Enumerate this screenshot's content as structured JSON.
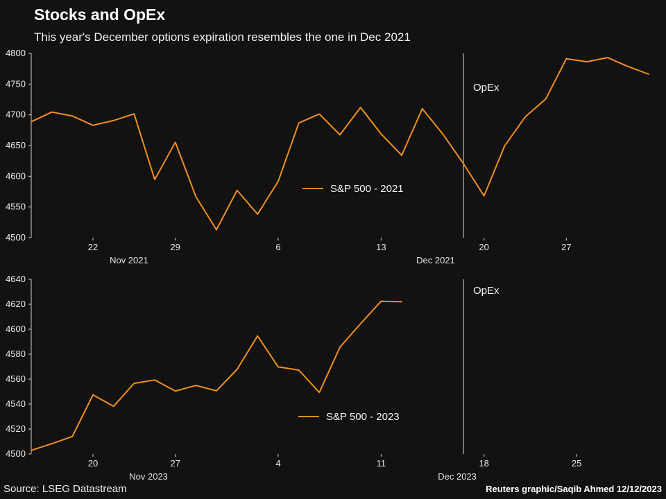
{
  "header": {
    "title": "Stocks and OpEx",
    "subtitle": "This year's December options expiration resembles the one in Dec 2021"
  },
  "footer": {
    "source": "Source: LSEG Datastream",
    "credit": "Reuters graphic/Saqib Ahmed 12/12/2023"
  },
  "colors": {
    "background": "#121212",
    "line": "#f2901e",
    "axis": "#cfcfcf",
    "opex_line": "#dedede",
    "text": "#f2f2f2"
  },
  "chart_data": [
    {
      "type": "line",
      "title": "S&P 500 - 2021",
      "legend_label": "S&P 500 - 2021",
      "x_unit": "consecutive trading days, Nov 17 2021 - Dec 31 2021",
      "x_domain": [
        0,
        30
      ],
      "ylim": [
        4500,
        4800
      ],
      "yticks": [
        4500,
        4550,
        4600,
        4650,
        4700,
        4750,
        4800
      ],
      "xticks": [
        {
          "label": "22",
          "i": 3
        },
        {
          "label": "29",
          "i": 7
        },
        {
          "label": "6",
          "i": 12
        },
        {
          "label": "13",
          "i": 17
        },
        {
          "label": "20",
          "i": 22
        },
        {
          "label": "27",
          "i": 26
        }
      ],
      "month_labels": [
        {
          "label": "Nov 2021",
          "i": 4.75
        },
        {
          "label": "Dec 2021",
          "i": 19.65
        }
      ],
      "opex": {
        "label": "OpEx",
        "i": 21,
        "date": "2021-12-17"
      },
      "dates": [
        "2021-11-17",
        "2021-11-18",
        "2021-11-19",
        "2021-11-22",
        "2021-11-23",
        "2021-11-24",
        "2021-11-26",
        "2021-11-29",
        "2021-11-30",
        "2021-12-01",
        "2021-12-02",
        "2021-12-03",
        "2021-12-06",
        "2021-12-07",
        "2021-12-08",
        "2021-12-09",
        "2021-12-10",
        "2021-12-13",
        "2021-12-14",
        "2021-12-15",
        "2021-12-16",
        "2021-12-17",
        "2021-12-20",
        "2021-12-21",
        "2021-12-22",
        "2021-12-23",
        "2021-12-27",
        "2021-12-28",
        "2021-12-29",
        "2021-12-30",
        "2021-12-31"
      ],
      "values": [
        4688.7,
        4704.5,
        4698.0,
        4682.9,
        4690.7,
        4701.5,
        4594.6,
        4655.3,
        4567.0,
        4513.0,
        4577.1,
        4538.4,
        4591.7,
        4686.8,
        4701.2,
        4667.5,
        4712.0,
        4669.0,
        4634.1,
        4709.9,
        4668.7,
        4620.6,
        4568.0,
        4649.2,
        4696.6,
        4725.8,
        4791.2,
        4786.4,
        4793.1,
        4778.7,
        4766.2
      ]
    },
    {
      "type": "line",
      "title": "S&P 500 - 2023",
      "legend_label": "S&P 500 - 2023",
      "x_unit": "consecutive trading days, Nov 15 2023 - Dec 29 2023 (data through Dec 12 2023)",
      "x_domain": [
        0,
        30
      ],
      "ylim": [
        4500,
        4640
      ],
      "yticks": [
        4500,
        4520,
        4540,
        4560,
        4580,
        4600,
        4620,
        4640
      ],
      "xticks": [
        {
          "label": "20",
          "i": 3
        },
        {
          "label": "27",
          "i": 7
        },
        {
          "label": "4",
          "i": 12
        },
        {
          "label": "11",
          "i": 17
        },
        {
          "label": "18",
          "i": 22
        },
        {
          "label": "25",
          "i": 26.5
        }
      ],
      "month_labels": [
        {
          "label": "Nov 2023",
          "i": 5.7
        },
        {
          "label": "Dec 2023",
          "i": 20.7
        }
      ],
      "opex": {
        "label": "OpEx",
        "i": 21,
        "date": "2023-12-15"
      },
      "dates": [
        "2023-11-15",
        "2023-11-16",
        "2023-11-17",
        "2023-11-20",
        "2023-11-21",
        "2023-11-22",
        "2023-11-24",
        "2023-11-27",
        "2023-11-28",
        "2023-11-29",
        "2023-11-30",
        "2023-12-01",
        "2023-12-04",
        "2023-12-05",
        "2023-12-06",
        "2023-12-07",
        "2023-12-08",
        "2023-12-11",
        "2023-12-12"
      ],
      "values": [
        4502.9,
        4508.2,
        4514.0,
        4547.4,
        4538.2,
        4556.6,
        4559.3,
        4550.4,
        4554.9,
        4550.6,
        4567.8,
        4594.6,
        4569.8,
        4567.2,
        4549.3,
        4585.6,
        4604.4,
        4622.4,
        4622.0
      ]
    }
  ]
}
